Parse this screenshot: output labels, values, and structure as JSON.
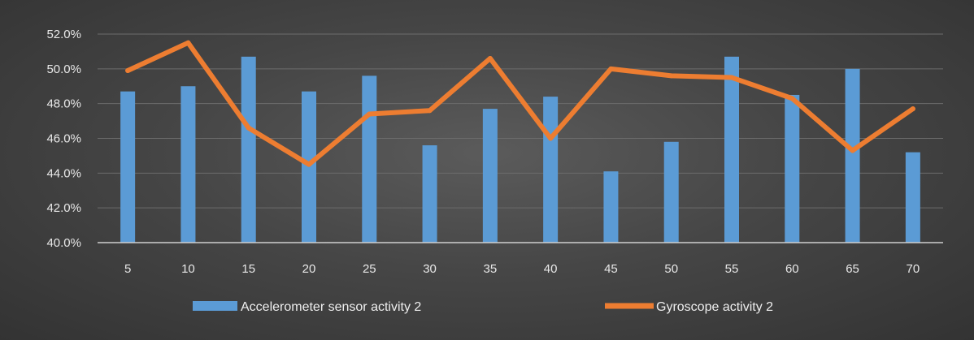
{
  "chart_data": {
    "type": "bar+line",
    "title": "",
    "xlabel": "",
    "ylabel": "",
    "categories": [
      "5",
      "10",
      "15",
      "20",
      "25",
      "30",
      "35",
      "40",
      "45",
      "50",
      "55",
      "60",
      "65",
      "70"
    ],
    "ylim": [
      40.0,
      52.0
    ],
    "yticks": [
      "40.0%",
      "42.0%",
      "44.0%",
      "46.0%",
      "48.0%",
      "50.0%",
      "52.0%"
    ],
    "ytick_values": [
      40,
      42,
      44,
      46,
      48,
      50,
      52
    ],
    "grid": "horizontal",
    "legend_position": "bottom",
    "series": [
      {
        "name": "Accelerometer sensor activity 2",
        "type": "bar",
        "color": "#5b9bd5",
        "values": [
          48.7,
          49.0,
          50.7,
          48.7,
          49.6,
          45.6,
          47.7,
          48.4,
          44.1,
          45.8,
          50.7,
          48.5,
          50.0,
          45.2
        ]
      },
      {
        "name": "Gyroscope activity 2",
        "type": "line",
        "color": "#ed7d31",
        "values": [
          49.9,
          51.5,
          46.6,
          44.5,
          47.4,
          47.6,
          50.6,
          46.0,
          50.0,
          49.6,
          49.5,
          48.3,
          45.3,
          47.7
        ]
      }
    ]
  }
}
